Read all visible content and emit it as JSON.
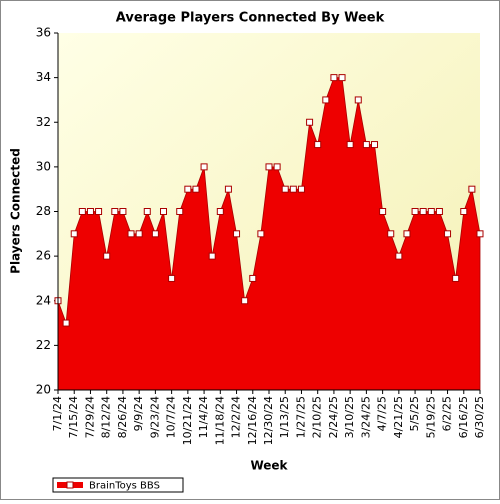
{
  "chart_data": {
    "type": "area",
    "title": "Average Players Connected By Week",
    "x_label": "Week",
    "y_label": "Players Connected",
    "categories": [
      "7/1/24",
      null,
      "7/15/24",
      null,
      "7/29/24",
      null,
      "8/12/24",
      null,
      "8/26/24",
      null,
      "9/9/24",
      null,
      "9/23/24",
      null,
      "10/7/24",
      null,
      "10/21/24",
      null,
      "11/4/24",
      null,
      "11/18/24",
      null,
      "12/2/24",
      null,
      "12/16/24",
      null,
      "12/30/24",
      null,
      "1/13/25",
      null,
      "1/27/25",
      null,
      "2/10/25",
      null,
      "2/24/25",
      null,
      "3/10/25",
      null,
      "3/24/25",
      null,
      "4/7/25",
      null,
      "4/21/25",
      null,
      "5/5/25",
      null,
      "5/19/25",
      null,
      "6/2/25",
      null,
      "6/16/25",
      null,
      "6/30/25"
    ],
    "series": [
      {
        "name": "BrainToys BBS",
        "color": "#ee0000",
        "values": [
          24,
          23,
          27,
          28,
          28,
          28,
          26,
          28,
          28,
          27,
          27,
          28,
          27,
          28,
          25,
          28,
          29,
          29,
          30,
          26,
          28,
          29,
          27,
          24,
          25,
          27,
          30,
          30,
          29,
          29,
          29,
          32,
          31,
          33,
          34,
          34,
          31,
          33,
          31,
          31,
          28,
          27,
          26,
          27,
          28,
          28,
          28,
          28,
          27,
          25,
          28,
          29,
          27
        ]
      }
    ],
    "ylim": [
      20,
      36
    ],
    "yticks": [
      20,
      22,
      24,
      26,
      28,
      30,
      32,
      34,
      36
    ],
    "legend": "bottom-left"
  }
}
